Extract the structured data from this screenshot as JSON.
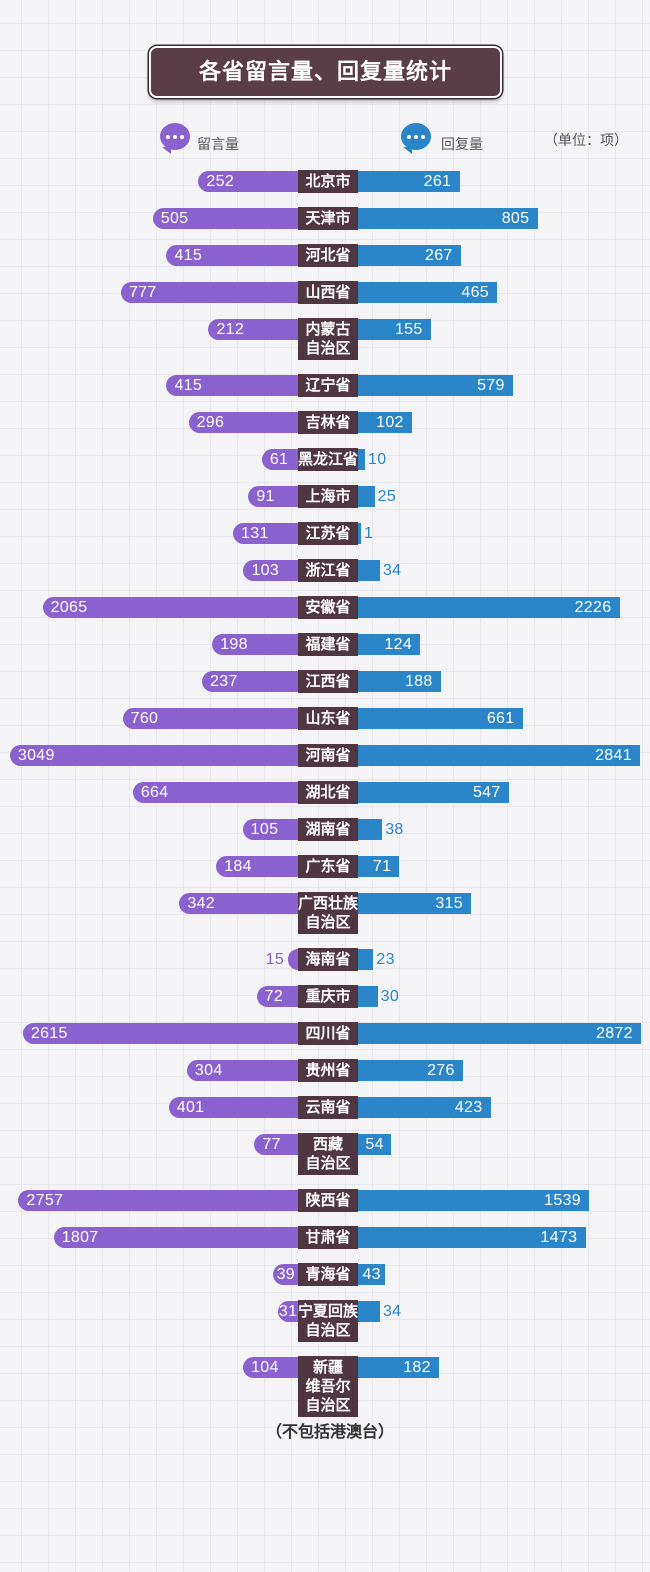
{
  "chart_data": {
    "type": "bar",
    "orientation": "horizontal-diverging",
    "title": "各省留言量、回复量统计",
    "unit_note": "（单位：项）",
    "footnote": "（不包括港澳台）",
    "legend_position": "top",
    "grid": false,
    "categories": [
      "北京市",
      "天津市",
      "河北省",
      "山西省",
      "内蒙古\n自治区",
      "辽宁省",
      "吉林省",
      "黑龙江省",
      "上海市",
      "江苏省",
      "浙江省",
      "安徽省",
      "福建省",
      "江西省",
      "山东省",
      "河南省",
      "湖北省",
      "湖南省",
      "广东省",
      "广西壮族\n自治区",
      "海南省",
      "重庆市",
      "四川省",
      "贵州省",
      "云南省",
      "西藏\n自治区",
      "陕西省",
      "甘肃省",
      "青海省",
      "宁夏回族\n自治区",
      "新疆\n维吾尔\n自治区"
    ],
    "series": [
      {
        "name": "留言量",
        "color": "#8a61cf",
        "values": [
          252,
          505,
          415,
          777,
          212,
          415,
          296,
          61,
          91,
          131,
          103,
          2065,
          198,
          237,
          760,
          3049,
          664,
          105,
          184,
          342,
          15,
          72,
          2615,
          304,
          401,
          77,
          2757,
          1807,
          39,
          31,
          104
        ]
      },
      {
        "name": "回复量",
        "color": "#2a86c8",
        "values": [
          261,
          805,
          267,
          465,
          155,
          579,
          102,
          10,
          25,
          1,
          34,
          2226,
          124,
          188,
          661,
          2841,
          547,
          38,
          71,
          315,
          23,
          30,
          2872,
          276,
          423,
          54,
          1539,
          1473,
          43,
          34,
          182
        ]
      }
    ]
  },
  "legend": {
    "icon": "chat-bubble-icon"
  },
  "colors": {
    "title_bg": "#5a3d46",
    "category_label_bg": "#503641"
  }
}
